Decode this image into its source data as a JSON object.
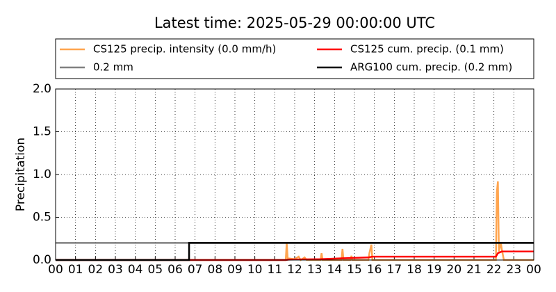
{
  "chart_data": {
    "type": "line",
    "title": "Latest time: 2025-05-29 00:00:00 UTC",
    "ylabel": "Precipitation",
    "xlim": [
      0,
      24
    ],
    "ylim": [
      0,
      2
    ],
    "xticks": [
      {
        "value": 0,
        "label": "00"
      },
      {
        "value": 1,
        "label": "01"
      },
      {
        "value": 2,
        "label": "02"
      },
      {
        "value": 3,
        "label": "03"
      },
      {
        "value": 4,
        "label": "04"
      },
      {
        "value": 5,
        "label": "05"
      },
      {
        "value": 6,
        "label": "06"
      },
      {
        "value": 7,
        "label": "07"
      },
      {
        "value": 8,
        "label": "08"
      },
      {
        "value": 9,
        "label": "09"
      },
      {
        "value": 10,
        "label": "10"
      },
      {
        "value": 11,
        "label": "11"
      },
      {
        "value": 12,
        "label": "12"
      },
      {
        "value": 13,
        "label": "13"
      },
      {
        "value": 14,
        "label": "14"
      },
      {
        "value": 15,
        "label": "15"
      },
      {
        "value": 16,
        "label": "16"
      },
      {
        "value": 17,
        "label": "17"
      },
      {
        "value": 18,
        "label": "18"
      },
      {
        "value": 19,
        "label": "19"
      },
      {
        "value": 20,
        "label": "20"
      },
      {
        "value": 21,
        "label": "21"
      },
      {
        "value": 22,
        "label": "22"
      },
      {
        "value": 23,
        "label": "23"
      },
      {
        "value": 24,
        "label": "00"
      }
    ],
    "yticks": [
      {
        "value": 0,
        "label": "0.0"
      },
      {
        "value": 0.5,
        "label": "0.5"
      },
      {
        "value": 1,
        "label": "1.0"
      },
      {
        "value": 1.5,
        "label": "1.5"
      },
      {
        "value": 2,
        "label": "2.0"
      }
    ],
    "grid": true,
    "series": [
      {
        "name": "CS125 precip. intensity (0.0 mm/h)",
        "color": "#ffa54f",
        "x": [
          0,
          11.55,
          11.6,
          11.65,
          12.0,
          12.2,
          12.3,
          12.5,
          12.6,
          13.3,
          13.35,
          13.4,
          14.35,
          14.4,
          14.45,
          14.8,
          14.85,
          14.9,
          15.7,
          15.75,
          15.85,
          15.9,
          22.1,
          22.15,
          22.2,
          22.25,
          22.35,
          22.4,
          22.5,
          24
        ],
        "values": [
          0,
          0,
          0.2,
          0.02,
          0.01,
          0.04,
          0,
          0.03,
          0,
          0,
          0.08,
          0,
          0,
          0.13,
          0,
          0,
          0.05,
          0,
          0,
          0.08,
          0.18,
          0,
          0,
          0.8,
          0.92,
          0.1,
          0.2,
          0.12,
          0,
          0
        ]
      },
      {
        "name": "0.2 mm",
        "color": "#808080",
        "x": [
          0,
          24
        ],
        "values": [
          0.2,
          0.2
        ]
      },
      {
        "name": "CS125 cum. precip. (0.1 mm)",
        "color": "#ff0000",
        "x": [
          0,
          11.55,
          11.7,
          13.3,
          14.4,
          15.7,
          15.9,
          22.1,
          22.2,
          22.4,
          24
        ],
        "values": [
          0,
          0,
          0.005,
          0.01,
          0.02,
          0.03,
          0.04,
          0.04,
          0.08,
          0.1,
          0.1
        ]
      },
      {
        "name": "ARG100 cum. precip. (0.2 mm)",
        "color": "#000000",
        "x": [
          0,
          6.7,
          6.7,
          24
        ],
        "values": [
          0,
          0,
          0.2,
          0.2
        ]
      }
    ]
  }
}
